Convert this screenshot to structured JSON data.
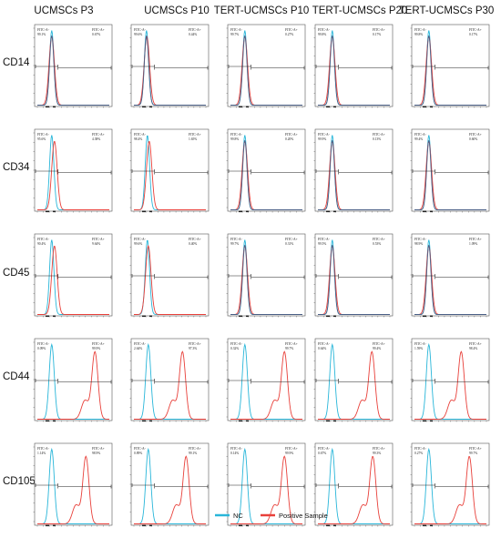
{
  "columns": [
    "UCMSCs P3",
    "UCMSCs P10",
    "TERT-UCMSCs P10",
    "TERT-UCMSCs P20",
    "TERT-UCMSCs P30"
  ],
  "rows": [
    {
      "marker": "CD14",
      "type": "overlap",
      "panels": [
        {
          "neg_label": "FITC-A-",
          "neg_pct": "99.1%",
          "pos_label": "FITC-A+",
          "pos_pct": "0.67%",
          "neg_peak": 0.8,
          "pos_peak": 0.8
        },
        {
          "neg_label": "FITC-A-",
          "neg_pct": "99.6%",
          "pos_label": "FITC-A+",
          "pos_pct": "0.44%",
          "neg_peak": 0.7,
          "pos_peak": 0.72
        },
        {
          "neg_label": "FITC-A-",
          "neg_pct": "99.7%",
          "pos_label": "FITC-A+",
          "pos_pct": "0.27%",
          "neg_peak": 0.8,
          "pos_peak": 0.8
        },
        {
          "neg_label": "FITC-A-",
          "neg_pct": "99.8%",
          "pos_label": "FITC-A+",
          "pos_pct": "0.17%",
          "neg_peak": 0.8,
          "pos_peak": 0.8
        },
        {
          "neg_label": "FITC-A-",
          "neg_pct": "99.8%",
          "pos_label": "FITC-A+",
          "pos_pct": "0.17%",
          "neg_peak": 0.8,
          "pos_peak": 0.8
        }
      ]
    },
    {
      "marker": "CD34",
      "type": "overlap",
      "panels": [
        {
          "neg_label": "FITC-A-",
          "neg_pct": "95.6%",
          "pos_label": "FITC-A+",
          "pos_pct": "4.38%",
          "neg_peak": 0.8,
          "pos_peak": 0.95
        },
        {
          "neg_label": "FITC-A-",
          "neg_pct": "98.4%",
          "pos_label": "FITC-A+",
          "pos_pct": "1.65%",
          "neg_peak": 0.75,
          "pos_peak": 0.85
        },
        {
          "neg_label": "FITC-A-",
          "neg_pct": "99.8%",
          "pos_label": "FITC-A+",
          "pos_pct": "0.20%",
          "neg_peak": 0.8,
          "pos_peak": 0.8
        },
        {
          "neg_label": "FITC-A-",
          "neg_pct": "99.9%",
          "pos_label": "FITC-A+",
          "pos_pct": "0.13%",
          "neg_peak": 0.8,
          "pos_peak": 0.8
        },
        {
          "neg_label": "FITC-A-",
          "neg_pct": "99.4%",
          "pos_label": "FITC-A+",
          "pos_pct": "0.60%",
          "neg_peak": 0.8,
          "pos_peak": 0.8
        }
      ]
    },
    {
      "marker": "CD45",
      "type": "overlap",
      "panels": [
        {
          "neg_label": "FITC-A-",
          "neg_pct": "90.4%",
          "pos_label": "FITC-A+",
          "pos_pct": "9.64%",
          "neg_peak": 0.8,
          "pos_peak": 0.95
        },
        {
          "neg_label": "FITC-A-",
          "neg_pct": "99.6%",
          "pos_label": "FITC-A+",
          "pos_pct": "0.40%",
          "neg_peak": 0.75,
          "pos_peak": 0.8
        },
        {
          "neg_label": "FITC-A-",
          "neg_pct": "99.7%",
          "pos_label": "FITC-A+",
          "pos_pct": "0.31%",
          "neg_peak": 0.8,
          "pos_peak": 0.8
        },
        {
          "neg_label": "FITC-A-",
          "neg_pct": "99.5%",
          "pos_label": "FITC-A+",
          "pos_pct": "0.53%",
          "neg_peak": 0.8,
          "pos_peak": 0.8
        },
        {
          "neg_label": "FITC-A-",
          "neg_pct": "98.9%",
          "pos_label": "FITC-A+",
          "pos_pct": "1.09%",
          "neg_peak": 0.8,
          "pos_peak": 0.8
        }
      ]
    },
    {
      "marker": "CD44",
      "type": "separate",
      "panels": [
        {
          "neg_label": "FITC-A-",
          "neg_pct": "0.09%",
          "pos_label": "FITC-A+",
          "pos_pct": "99.9%",
          "neg_peak": 0.8,
          "pos_peak": 3.2
        },
        {
          "neg_label": "FITC-A-",
          "neg_pct": "2.64%",
          "pos_label": "FITC-A+",
          "pos_pct": "97.3%",
          "neg_peak": 0.8,
          "pos_peak": 2.7
        },
        {
          "neg_label": "FITC-A-",
          "neg_pct": "0.32%",
          "pos_label": "FITC-A+",
          "pos_pct": "99.7%",
          "neg_peak": 0.8,
          "pos_peak": 3.0
        },
        {
          "neg_label": "FITC-A-",
          "neg_pct": "0.64%",
          "pos_label": "FITC-A+",
          "pos_pct": "99.4%",
          "neg_peak": 0.8,
          "pos_peak": 3.0
        },
        {
          "neg_label": "FITC-A-",
          "neg_pct": "1.59%",
          "pos_label": "FITC-A+",
          "pos_pct": "98.4%",
          "neg_peak": 0.8,
          "pos_peak": 2.6
        }
      ]
    },
    {
      "marker": "CD105",
      "type": "separate",
      "panels": [
        {
          "neg_label": "FITC-A-",
          "neg_pct": "1.14%",
          "pos_label": "FITC-A+",
          "pos_pct": "98.9%",
          "neg_peak": 0.8,
          "pos_peak": 2.7
        },
        {
          "neg_label": "FITC-A-",
          "neg_pct": "0.89%",
          "pos_label": "FITC-A+",
          "pos_pct": "99.1%",
          "neg_peak": 0.8,
          "pos_peak": 2.9
        },
        {
          "neg_label": "FITC-A-",
          "neg_pct": "0.14%",
          "pos_label": "FITC-A+",
          "pos_pct": "99.9%",
          "neg_peak": 0.8,
          "pos_peak": 3.0
        },
        {
          "neg_label": "FITC-A-",
          "neg_pct": "0.67%",
          "pos_label": "FITC-A+",
          "pos_pct": "99.3%",
          "neg_peak": 0.8,
          "pos_peak": 3.05
        },
        {
          "neg_label": "FITC-A-",
          "neg_pct": "0.27%",
          "pos_label": "FITC-A+",
          "pos_pct": "99.7%",
          "neg_peak": 0.8,
          "pos_peak": 3.05
        }
      ]
    }
  ],
  "legend": [
    {
      "label": "NC",
      "color": "#29b6d9"
    },
    {
      "label": "Positive Sample",
      "color": "#e8403a"
    }
  ],
  "colors": {
    "nc": "#29b6d9",
    "positive": "#e8403a",
    "overlap": "#4a5f86"
  }
}
